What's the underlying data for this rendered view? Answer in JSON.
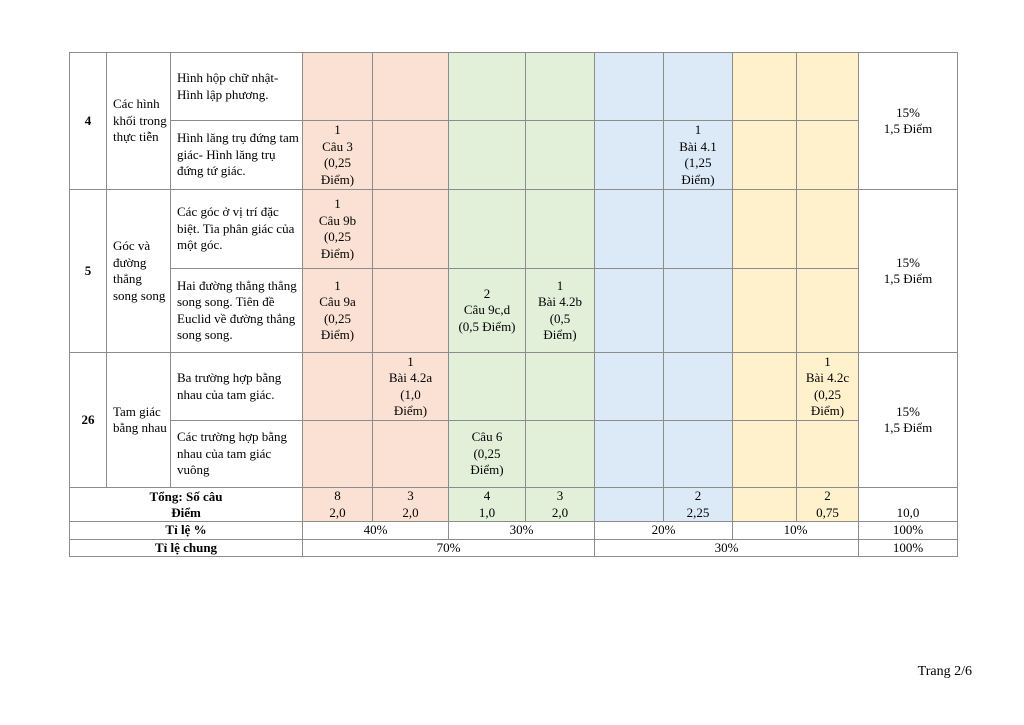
{
  "rows": {
    "r4": {
      "stt": "4",
      "chapter": "Các hình khối trong thực tiễn",
      "topic1": "Hình hộp chữ nhật- Hình lập phương.",
      "topic2": "Hình lăng trụ đứng tam giác- Hình lăng trụ đứng tứ giác.",
      "t2_c1": "1\nCâu 3\n(0,25\nĐiểm)",
      "t2_c5": "1\nBài 4.1\n(1,25\nĐiểm)",
      "percent": "15%\n1,5 Điểm"
    },
    "r5": {
      "stt": "5",
      "chapter": "Góc và đường thẳng song song",
      "topic1": "Các góc ở vị trí đặc biệt. Tia phân giác của một góc.",
      "t1_c1": "1\nCâu 9b\n(0,25\nĐiểm)",
      "topic2": "Hai đường thẳng thẳng song song. Tiên đề Euclid về đường thẳng song song.",
      "t2_c1": "1\nCâu 9a\n(0,25\nĐiểm)",
      "t2_c3": "2\nCâu 9c,d\n(0,5 Điểm)",
      "t2_c4": "1\nBài 4.2b\n(0,5\nĐiểm)",
      "percent": "15%\n1,5 Điểm"
    },
    "r26": {
      "stt": "26",
      "chapter": "Tam giác bằng nhau",
      "topic1": "Ba trường hợp bằng nhau của tam giác.",
      "t1_c2": "1\nBài 4.2a\n(1,0\nĐiểm)",
      "t1_c8": "1\nBài 4.2c\n(0,25\nĐiểm)",
      "topic2": "Các trường hợp bằng nhau của tam giác vuông",
      "t2_c3": "Câu 6\n(0,25\nĐiểm)",
      "percent": "15%\n1,5 Điểm"
    }
  },
  "totals": {
    "label": "Tổng:    Số câu\nĐiểm",
    "c1": "8\n2,0",
    "c2": "3\n2,0",
    "c3": "4\n1,0",
    "c4": "3\n2,0",
    "c6": "2\n2,25",
    "c8": "2\n0,75",
    "last": "10,0"
  },
  "ratio": {
    "label": "Tỉ lệ %",
    "nb": "40%",
    "th": "30%",
    "vd": "20%",
    "vdc": "10%",
    "total": "100%"
  },
  "common": {
    "label": "Tỉ lệ chung",
    "a": "70%",
    "b": "30%",
    "total": "100%"
  },
  "footer": "Trang 2/6",
  "colors": {
    "level1": "#fbe1d4",
    "level2": "#e2efd9",
    "level3": "#dce9f6",
    "level4": "#fff1cc"
  }
}
